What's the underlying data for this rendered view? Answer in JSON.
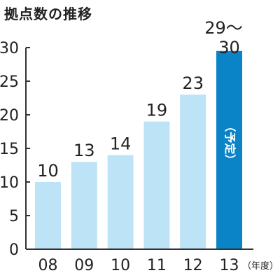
{
  "chart_data": {
    "type": "bar",
    "title": "拠点数の推移",
    "categories": [
      "08",
      "09",
      "10",
      "11",
      "12",
      "13"
    ],
    "values": [
      10,
      13,
      14,
      19,
      23,
      29.5
    ],
    "value_labels": [
      "10",
      "13",
      "14",
      "19",
      "23",
      "29〜30"
    ],
    "ylim": [
      0,
      30
    ],
    "yticks": [
      0,
      5,
      10,
      15,
      20,
      25,
      30
    ],
    "x_unit": "（年度）",
    "highlight": {
      "index": 5,
      "note": "（予定）"
    },
    "grid": false,
    "colors": {
      "bar": "#bde3f6",
      "highlight": "#0b84c7",
      "axis": "#333333"
    }
  }
}
